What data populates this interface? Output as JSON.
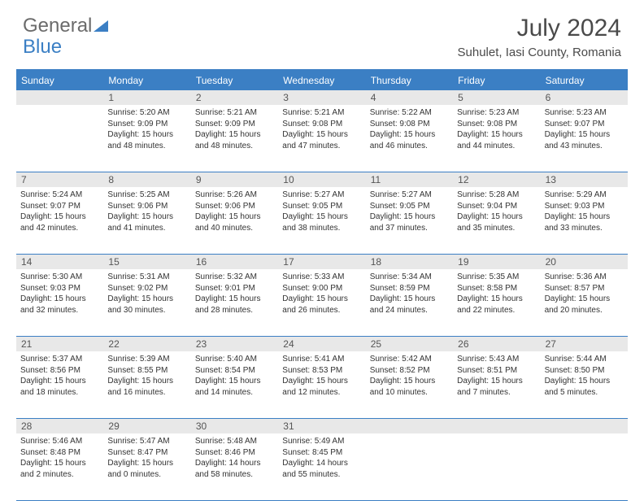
{
  "logo": {
    "text1": "General",
    "text2": "Blue"
  },
  "title": "July 2024",
  "location": "Suhulet, Iasi County, Romania",
  "weekdays": [
    "Sunday",
    "Monday",
    "Tuesday",
    "Wednesday",
    "Thursday",
    "Friday",
    "Saturday"
  ],
  "colors": {
    "accent": "#3b7fc4",
    "daynum_bg": "#e8e8e8",
    "text": "#333333",
    "header_text": "#4a4a4a"
  },
  "weeks": [
    [
      {
        "n": "",
        "sunrise": "",
        "sunset": "",
        "daylight": ""
      },
      {
        "n": "1",
        "sunrise": "Sunrise: 5:20 AM",
        "sunset": "Sunset: 9:09 PM",
        "daylight": "Daylight: 15 hours and 48 minutes."
      },
      {
        "n": "2",
        "sunrise": "Sunrise: 5:21 AM",
        "sunset": "Sunset: 9:09 PM",
        "daylight": "Daylight: 15 hours and 48 minutes."
      },
      {
        "n": "3",
        "sunrise": "Sunrise: 5:21 AM",
        "sunset": "Sunset: 9:08 PM",
        "daylight": "Daylight: 15 hours and 47 minutes."
      },
      {
        "n": "4",
        "sunrise": "Sunrise: 5:22 AM",
        "sunset": "Sunset: 9:08 PM",
        "daylight": "Daylight: 15 hours and 46 minutes."
      },
      {
        "n": "5",
        "sunrise": "Sunrise: 5:23 AM",
        "sunset": "Sunset: 9:08 PM",
        "daylight": "Daylight: 15 hours and 44 minutes."
      },
      {
        "n": "6",
        "sunrise": "Sunrise: 5:23 AM",
        "sunset": "Sunset: 9:07 PM",
        "daylight": "Daylight: 15 hours and 43 minutes."
      }
    ],
    [
      {
        "n": "7",
        "sunrise": "Sunrise: 5:24 AM",
        "sunset": "Sunset: 9:07 PM",
        "daylight": "Daylight: 15 hours and 42 minutes."
      },
      {
        "n": "8",
        "sunrise": "Sunrise: 5:25 AM",
        "sunset": "Sunset: 9:06 PM",
        "daylight": "Daylight: 15 hours and 41 minutes."
      },
      {
        "n": "9",
        "sunrise": "Sunrise: 5:26 AM",
        "sunset": "Sunset: 9:06 PM",
        "daylight": "Daylight: 15 hours and 40 minutes."
      },
      {
        "n": "10",
        "sunrise": "Sunrise: 5:27 AM",
        "sunset": "Sunset: 9:05 PM",
        "daylight": "Daylight: 15 hours and 38 minutes."
      },
      {
        "n": "11",
        "sunrise": "Sunrise: 5:27 AM",
        "sunset": "Sunset: 9:05 PM",
        "daylight": "Daylight: 15 hours and 37 minutes."
      },
      {
        "n": "12",
        "sunrise": "Sunrise: 5:28 AM",
        "sunset": "Sunset: 9:04 PM",
        "daylight": "Daylight: 15 hours and 35 minutes."
      },
      {
        "n": "13",
        "sunrise": "Sunrise: 5:29 AM",
        "sunset": "Sunset: 9:03 PM",
        "daylight": "Daylight: 15 hours and 33 minutes."
      }
    ],
    [
      {
        "n": "14",
        "sunrise": "Sunrise: 5:30 AM",
        "sunset": "Sunset: 9:03 PM",
        "daylight": "Daylight: 15 hours and 32 minutes."
      },
      {
        "n": "15",
        "sunrise": "Sunrise: 5:31 AM",
        "sunset": "Sunset: 9:02 PM",
        "daylight": "Daylight: 15 hours and 30 minutes."
      },
      {
        "n": "16",
        "sunrise": "Sunrise: 5:32 AM",
        "sunset": "Sunset: 9:01 PM",
        "daylight": "Daylight: 15 hours and 28 minutes."
      },
      {
        "n": "17",
        "sunrise": "Sunrise: 5:33 AM",
        "sunset": "Sunset: 9:00 PM",
        "daylight": "Daylight: 15 hours and 26 minutes."
      },
      {
        "n": "18",
        "sunrise": "Sunrise: 5:34 AM",
        "sunset": "Sunset: 8:59 PM",
        "daylight": "Daylight: 15 hours and 24 minutes."
      },
      {
        "n": "19",
        "sunrise": "Sunrise: 5:35 AM",
        "sunset": "Sunset: 8:58 PM",
        "daylight": "Daylight: 15 hours and 22 minutes."
      },
      {
        "n": "20",
        "sunrise": "Sunrise: 5:36 AM",
        "sunset": "Sunset: 8:57 PM",
        "daylight": "Daylight: 15 hours and 20 minutes."
      }
    ],
    [
      {
        "n": "21",
        "sunrise": "Sunrise: 5:37 AM",
        "sunset": "Sunset: 8:56 PM",
        "daylight": "Daylight: 15 hours and 18 minutes."
      },
      {
        "n": "22",
        "sunrise": "Sunrise: 5:39 AM",
        "sunset": "Sunset: 8:55 PM",
        "daylight": "Daylight: 15 hours and 16 minutes."
      },
      {
        "n": "23",
        "sunrise": "Sunrise: 5:40 AM",
        "sunset": "Sunset: 8:54 PM",
        "daylight": "Daylight: 15 hours and 14 minutes."
      },
      {
        "n": "24",
        "sunrise": "Sunrise: 5:41 AM",
        "sunset": "Sunset: 8:53 PM",
        "daylight": "Daylight: 15 hours and 12 minutes."
      },
      {
        "n": "25",
        "sunrise": "Sunrise: 5:42 AM",
        "sunset": "Sunset: 8:52 PM",
        "daylight": "Daylight: 15 hours and 10 minutes."
      },
      {
        "n": "26",
        "sunrise": "Sunrise: 5:43 AM",
        "sunset": "Sunset: 8:51 PM",
        "daylight": "Daylight: 15 hours and 7 minutes."
      },
      {
        "n": "27",
        "sunrise": "Sunrise: 5:44 AM",
        "sunset": "Sunset: 8:50 PM",
        "daylight": "Daylight: 15 hours and 5 minutes."
      }
    ],
    [
      {
        "n": "28",
        "sunrise": "Sunrise: 5:46 AM",
        "sunset": "Sunset: 8:48 PM",
        "daylight": "Daylight: 15 hours and 2 minutes."
      },
      {
        "n": "29",
        "sunrise": "Sunrise: 5:47 AM",
        "sunset": "Sunset: 8:47 PM",
        "daylight": "Daylight: 15 hours and 0 minutes."
      },
      {
        "n": "30",
        "sunrise": "Sunrise: 5:48 AM",
        "sunset": "Sunset: 8:46 PM",
        "daylight": "Daylight: 14 hours and 58 minutes."
      },
      {
        "n": "31",
        "sunrise": "Sunrise: 5:49 AM",
        "sunset": "Sunset: 8:45 PM",
        "daylight": "Daylight: 14 hours and 55 minutes."
      },
      {
        "n": "",
        "sunrise": "",
        "sunset": "",
        "daylight": ""
      },
      {
        "n": "",
        "sunrise": "",
        "sunset": "",
        "daylight": ""
      },
      {
        "n": "",
        "sunrise": "",
        "sunset": "",
        "daylight": ""
      }
    ]
  ]
}
